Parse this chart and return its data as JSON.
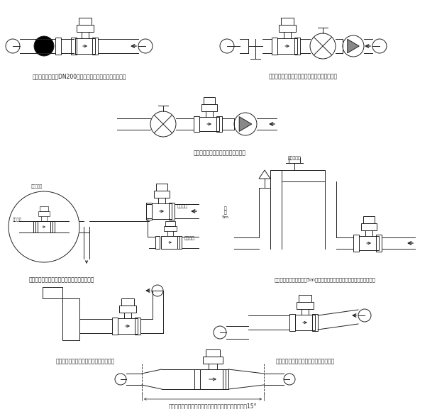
{
  "bg": "#ffffff",
  "lc": "#222222",
  "captions": [
    "在大口径流量计（DN200以上）安装管线上要加接弹性管件",
    "长管线上控制阀和切断阀要安装在流量计的下游",
    "为防止真空，流量计应装在泵的后面",
    "为避免夹带气体引起测量误差，流量计的安装",
    "为防止真空，落差管超过5m长时要在流量计下流最高位置上装自动排气阀",
    "敦口潜入或排放流量计安装在管道低段区",
    "水平管道流量计安装在稍稍向上的管道区",
    "流量计上下游管道为异径管时，异径管中心锥角应小于15°"
  ]
}
